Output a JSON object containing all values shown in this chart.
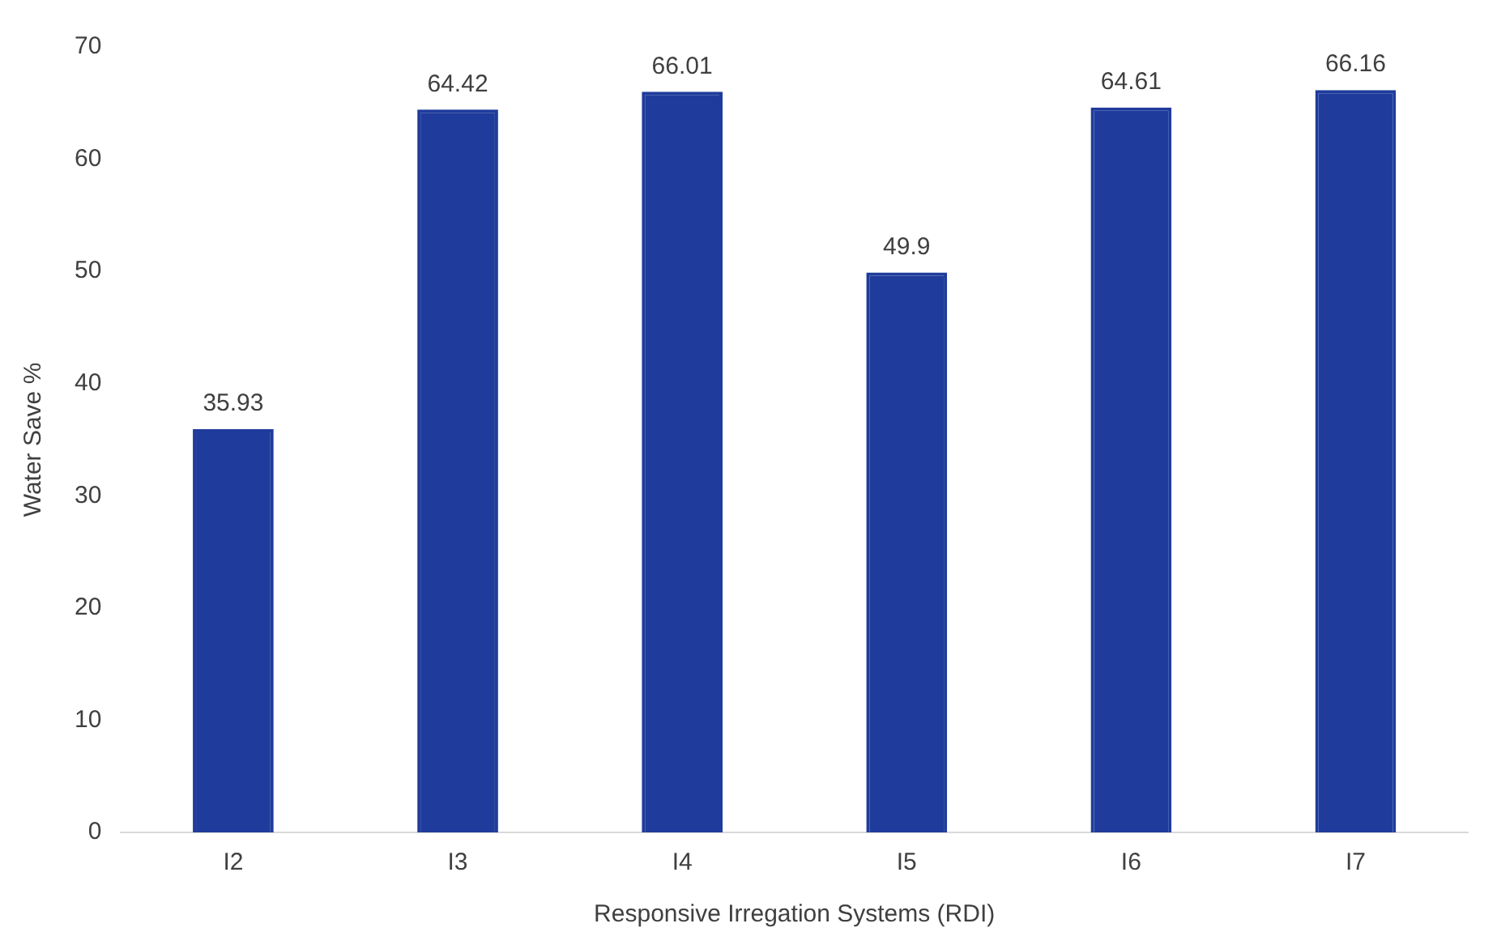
{
  "chart_data": {
    "type": "bar",
    "xlabel": "Responsive Irregation Systems (RDI)",
    "ylabel": "Water Save %",
    "categories": [
      "I2",
      "I3",
      "I4",
      "I5",
      "I6",
      "I7"
    ],
    "values": [
      35.93,
      64.42,
      66.01,
      49.9,
      64.61,
      66.16
    ],
    "color": "#1f3c9c",
    "ylim": [
      0,
      70
    ],
    "yticks": [
      0,
      10,
      20,
      30,
      40,
      50,
      60,
      70
    ],
    "grid": false,
    "legend": false,
    "data_labels": true
  }
}
